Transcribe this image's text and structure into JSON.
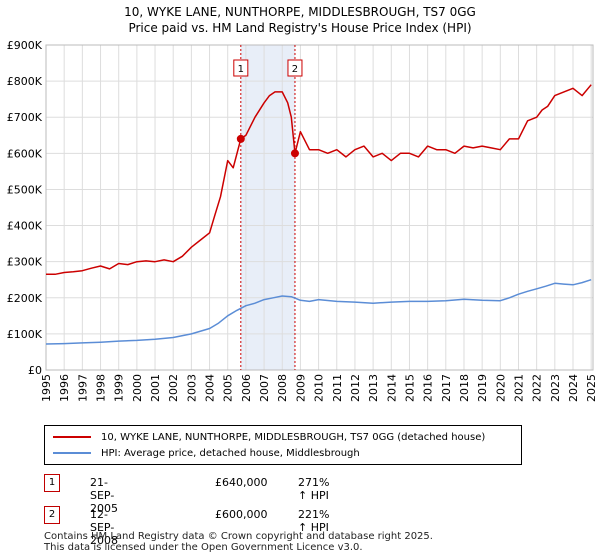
{
  "title_line1": "10, WYKE LANE, NUNTHORPE, MIDDLESBROUGH, TS7 0GG",
  "title_line2": "Price paid vs. HM Land Registry's House Price Index (HPI)",
  "colors": {
    "property": "#cc0000",
    "hpi": "#5b8dd6",
    "shade": "#e8eef8",
    "grid": "#dddddd",
    "marker_line": "#cc0000"
  },
  "legend": {
    "property_label": "10, WYKE LANE, NUNTHORPE, MIDDLESBROUGH, TS7 0GG (detached house)",
    "hpi_label": "HPI: Average price, detached house, Middlesbrough"
  },
  "sales": [
    {
      "num": "1",
      "date": "21-SEP-2005",
      "price": "£640,000",
      "hpi": "271% ↑ HPI"
    },
    {
      "num": "2",
      "date": "12-SEP-2008",
      "price": "£600,000",
      "hpi": "221% ↑ HPI"
    }
  ],
  "footer_line1": "Contains HM Land Registry data © Crown copyright and database right 2025.",
  "footer_line2": "This data is licensed under the Open Government Licence v3.0.",
  "chart_data": {
    "type": "line",
    "title": "10, WYKE LANE, NUNTHORPE, MIDDLESBROUGH, TS7 0GG",
    "subtitle": "Price paid vs. HM Land Registry's House Price Index (HPI)",
    "xlim": [
      1995,
      2025.1
    ],
    "ylim": [
      0,
      900000
    ],
    "y_ticks": [
      0,
      100000,
      200000,
      300000,
      400000,
      500000,
      600000,
      700000,
      800000,
      900000
    ],
    "y_tick_labels": [
      "£0",
      "£100K",
      "£200K",
      "£300K",
      "£400K",
      "£500K",
      "£600K",
      "£700K",
      "£800K",
      "£900K"
    ],
    "x_ticks": [
      1995,
      1996,
      1997,
      1998,
      1999,
      2000,
      2001,
      2002,
      2003,
      2004,
      2005,
      2006,
      2007,
      2008,
      2009,
      2010,
      2011,
      2012,
      2013,
      2014,
      2015,
      2016,
      2017,
      2018,
      2019,
      2020,
      2021,
      2022,
      2023,
      2024,
      2025
    ],
    "shaded_region": [
      2005.72,
      2008.7
    ],
    "markers": [
      {
        "label": "1",
        "x": 2005.72,
        "y": 640000
      },
      {
        "label": "2",
        "x": 2008.7,
        "y": 600000
      }
    ],
    "series": [
      {
        "name": "10, WYKE LANE, NUNTHORPE, MIDDLESBROUGH, TS7 0GG (detached house)",
        "x": [
          1995,
          1995.5,
          1996,
          1996.5,
          1997,
          1997.5,
          1998,
          1998.5,
          1999,
          1999.5,
          2000,
          2000.5,
          2001,
          2001.5,
          2002,
          2002.5,
          2003,
          2003.5,
          2004,
          2004.3,
          2004.6,
          2005,
          2005.3,
          2005.72,
          2006,
          2006.5,
          2007,
          2007.3,
          2007.6,
          2008,
          2008.3,
          2008.5,
          2008.7,
          2009,
          2009.5,
          2010,
          2010.5,
          2011,
          2011.5,
          2012,
          2012.5,
          2013,
          2013.5,
          2014,
          2014.5,
          2015,
          2015.5,
          2016,
          2016.5,
          2017,
          2017.5,
          2018,
          2018.5,
          2019,
          2019.5,
          2020,
          2020.5,
          2021,
          2021.5,
          2022,
          2022.3,
          2022.6,
          2023,
          2023.5,
          2024,
          2024.5,
          2025
        ],
        "values": [
          265000,
          265000,
          270000,
          272000,
          275000,
          282000,
          288000,
          280000,
          295000,
          292000,
          300000,
          302000,
          300000,
          305000,
          300000,
          315000,
          340000,
          360000,
          380000,
          430000,
          480000,
          580000,
          560000,
          640000,
          650000,
          700000,
          740000,
          760000,
          770000,
          770000,
          740000,
          700000,
          600000,
          660000,
          610000,
          610000,
          600000,
          610000,
          590000,
          610000,
          620000,
          590000,
          600000,
          580000,
          600000,
          600000,
          590000,
          620000,
          610000,
          610000,
          600000,
          620000,
          615000,
          620000,
          615000,
          610000,
          640000,
          640000,
          690000,
          700000,
          720000,
          730000,
          760000,
          770000,
          780000,
          760000,
          790000
        ]
      },
      {
        "name": "HPI: Average price, detached house, Middlesbrough",
        "x": [
          1995,
          1996,
          1997,
          1998,
          1999,
          2000,
          2001,
          2002,
          2003,
          2004,
          2004.5,
          2005,
          2005.5,
          2006,
          2006.5,
          2007,
          2007.5,
          2008,
          2008.5,
          2009,
          2009.5,
          2010,
          2011,
          2012,
          2013,
          2014,
          2015,
          2016,
          2017,
          2018,
          2019,
          2020,
          2020.5,
          2021,
          2021.5,
          2022,
          2022.5,
          2023,
          2023.5,
          2024,
          2024.5,
          2025
        ],
        "values": [
          72000,
          73000,
          75000,
          77000,
          80000,
          82000,
          85000,
          90000,
          100000,
          115000,
          130000,
          150000,
          165000,
          178000,
          185000,
          195000,
          200000,
          205000,
          203000,
          193000,
          190000,
          195000,
          190000,
          188000,
          185000,
          188000,
          190000,
          190000,
          192000,
          196000,
          193000,
          192000,
          200000,
          210000,
          218000,
          225000,
          232000,
          240000,
          238000,
          236000,
          242000,
          250000
        ]
      }
    ]
  }
}
